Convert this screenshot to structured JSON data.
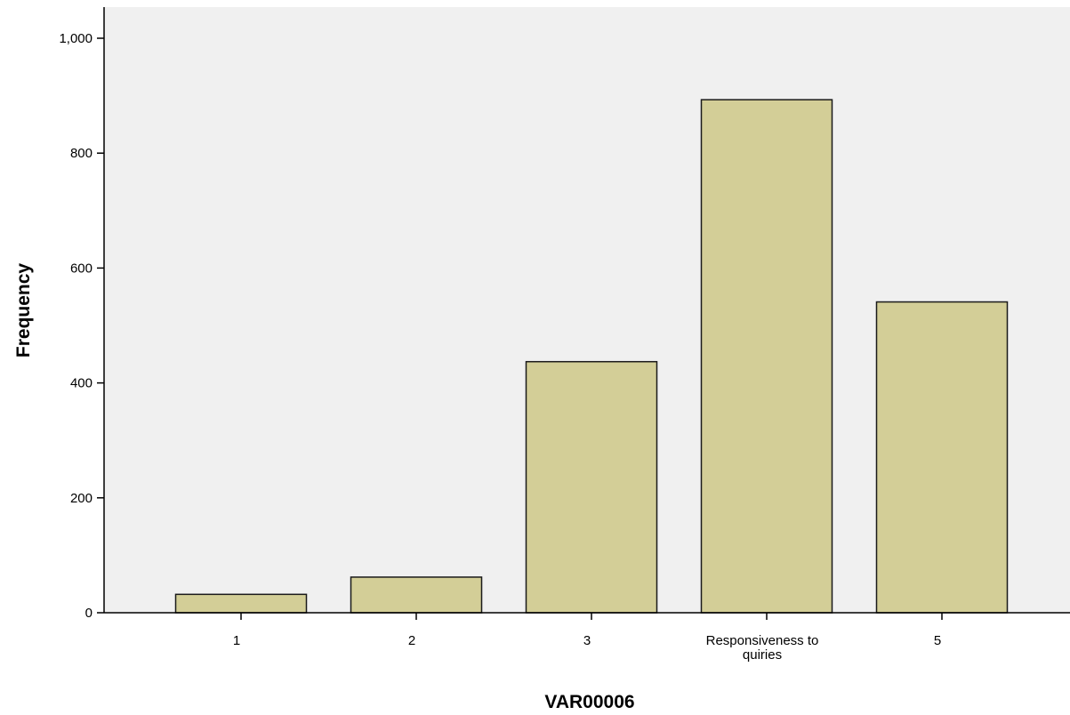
{
  "chart_data": {
    "type": "bar",
    "xlabel": "VAR00006",
    "ylabel": "Frequency",
    "categories": [
      "1",
      "2",
      "3",
      "Responsiveness to quiries",
      "5"
    ],
    "category_lines": [
      [
        "1"
      ],
      [
        "2"
      ],
      [
        "3"
      ],
      [
        "Responsiveness to",
        "quiries"
      ],
      [
        "5"
      ]
    ],
    "values": [
      32,
      62,
      437,
      893,
      541
    ],
    "ylim": [
      0,
      1000
    ],
    "yticks": [
      0,
      200,
      400,
      600,
      800,
      1000
    ],
    "ytick_labels": [
      "0",
      "200",
      "400",
      "600",
      "800",
      "1,000"
    ],
    "grid": false,
    "legend": "none",
    "colors": {
      "plot_background": "#f0f0f0",
      "bar_fill": "#d3ce97",
      "bar_stroke": "#1a1a1a",
      "axis": "#000000"
    }
  }
}
